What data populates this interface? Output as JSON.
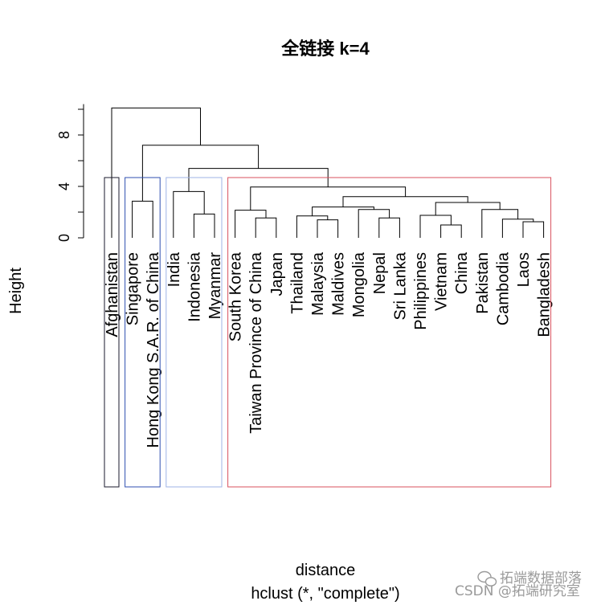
{
  "chart_data": {
    "type": "dendrogram",
    "title": "全链接 k=4",
    "xlabel": "distance",
    "sublabel": "hclust (*, \"complete\")",
    "ylabel": "Height",
    "y_ticks": [
      0,
      4,
      8
    ],
    "y_minor_ticks": [
      2,
      6,
      10
    ],
    "ylim": [
      0,
      10.4
    ],
    "leaves": [
      "Afghanistan",
      "Singapore",
      "Hong Kong S.A.R. of China",
      "India",
      "Indonesia",
      "Myanmar",
      "South Korea",
      "Taiwan Province of China",
      "Japan",
      "Thailand",
      "Malaysia",
      "Maldives",
      "Mongolia",
      "Nepal",
      "Sri Lanka",
      "Philippines",
      "Vietnam",
      "China",
      "Pakistan",
      "Cambodia",
      "Laos",
      "Bangladesh"
    ],
    "merges": [
      {
        "left": "L1",
        "right": "L2",
        "height": 2.85
      },
      {
        "left": "L4",
        "right": "L5",
        "height": 1.85
      },
      {
        "left": "L3",
        "right": "M1",
        "height": 3.6
      },
      {
        "left": "L7",
        "right": "L8",
        "height": 1.55
      },
      {
        "left": "L6",
        "right": "M3",
        "height": 2.15
      },
      {
        "left": "L10",
        "right": "L11",
        "height": 1.4
      },
      {
        "left": "L9",
        "right": "M5",
        "height": 1.7
      },
      {
        "left": "L13",
        "right": "L14",
        "height": 1.55
      },
      {
        "left": "L12",
        "right": "M7",
        "height": 2.2
      },
      {
        "left": "M6",
        "right": "M8",
        "height": 2.4
      },
      {
        "left": "L16",
        "right": "L17",
        "height": 1.0
      },
      {
        "left": "L15",
        "right": "M10",
        "height": 1.75
      },
      {
        "left": "L20",
        "right": "L21",
        "height": 1.25
      },
      {
        "left": "L19",
        "right": "M12",
        "height": 1.45
      },
      {
        "left": "L18",
        "right": "M13",
        "height": 2.2
      },
      {
        "left": "M11",
        "right": "M14",
        "height": 2.75
      },
      {
        "left": "M9",
        "right": "M15",
        "height": 3.2
      },
      {
        "left": "M4",
        "right": "M16",
        "height": 3.95
      },
      {
        "left": "M2",
        "right": "M17",
        "height": 5.4
      },
      {
        "left": "M0",
        "right": "M18",
        "height": 7.2
      },
      {
        "left": "L0",
        "right": "M19",
        "height": 10.1
      }
    ],
    "clusters": [
      {
        "k": 1,
        "from": 0,
        "to": 0,
        "color": "#1a1a2e"
      },
      {
        "k": 2,
        "from": 1,
        "to": 2,
        "color": "#2f4fb0"
      },
      {
        "k": 3,
        "from": 3,
        "to": 5,
        "color": "#9fb3e6"
      },
      {
        "k": 4,
        "from": 6,
        "to": 21,
        "color": "#d9525e"
      }
    ]
  },
  "watermark": {
    "top": "拓端数据部落",
    "bottom": "CSDN @拓端研究室"
  }
}
